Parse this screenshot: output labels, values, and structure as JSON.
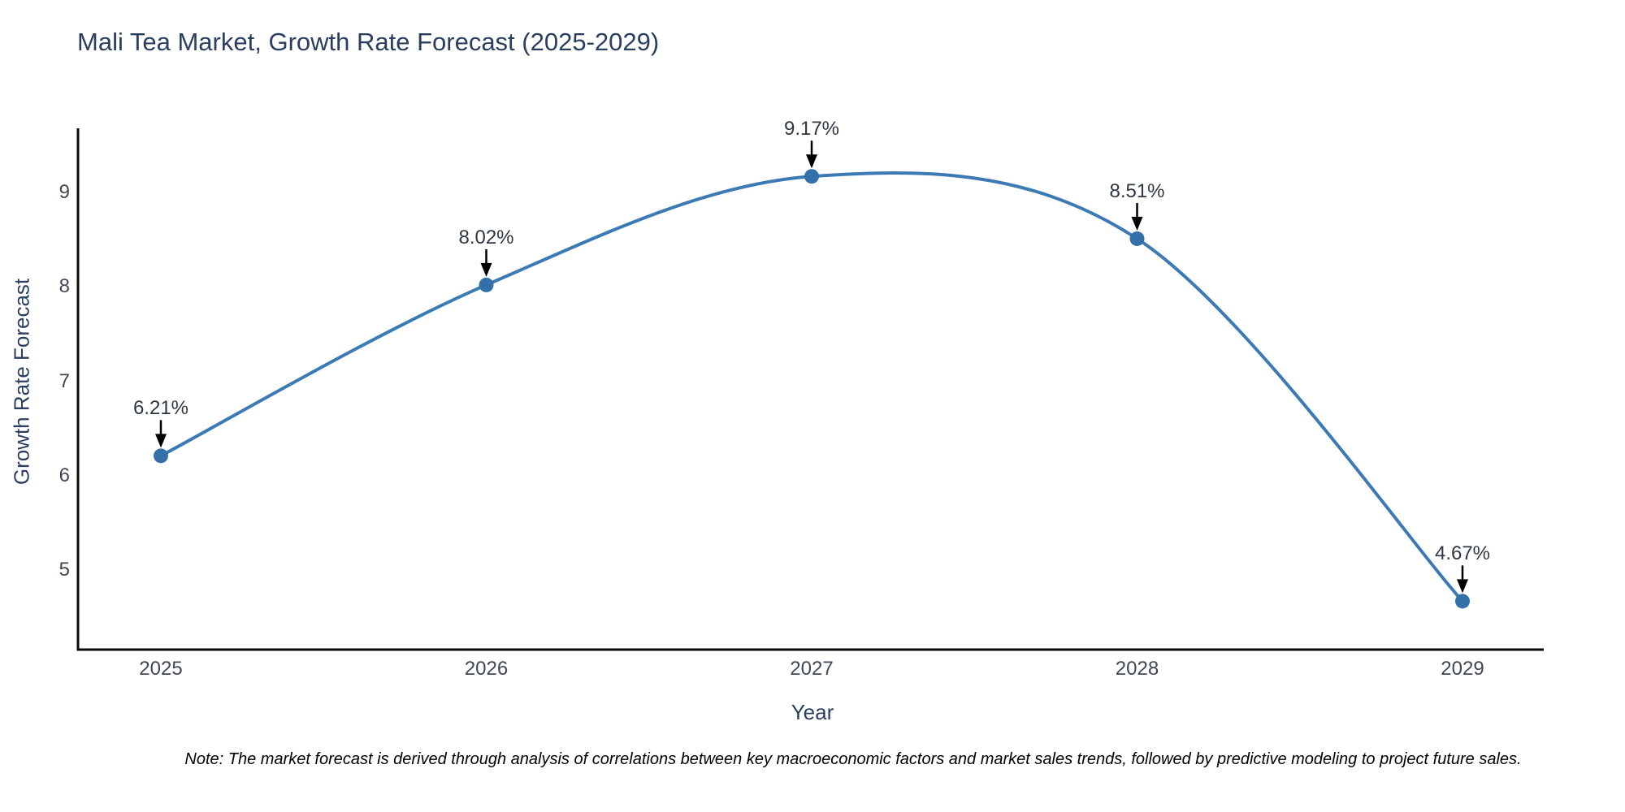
{
  "title": "Mali Tea Market, Growth Rate Forecast (2025-2029)",
  "note": "Note: The market forecast is derived through analysis of correlations between key macroeconomic factors and market sales trends, followed by predictive modeling to project future sales.",
  "chart_data": {
    "type": "line",
    "title": "Mali Tea Market, Growth Rate Forecast (2025-2029)",
    "x": [
      2025,
      2026,
      2027,
      2028,
      2029
    ],
    "series": [
      {
        "name": "Growth Rate Forecast",
        "values": [
          6.21,
          8.02,
          9.17,
          8.51,
          4.67
        ]
      }
    ],
    "point_labels": [
      "6.21%",
      "8.02%",
      "9.17%",
      "8.51%",
      "4.67%"
    ],
    "xlabel": "Year",
    "ylabel": "Growth Rate Forecast",
    "xticks": [
      "2025",
      "2026",
      "2027",
      "2028",
      "2029"
    ],
    "yticks": [
      5,
      6,
      7,
      8,
      9
    ],
    "ylim": [
      4.15,
      9.7
    ],
    "line_shape": "spline",
    "grid": false,
    "legend": "none",
    "colors": {
      "line": "#3c7ab4",
      "marker": "#336fa8",
      "axis": "#0b0b0b",
      "arrow": "#000000",
      "title_text": "#2a3f5f",
      "tick_text": "#404854",
      "annotation_text": "#2f3842"
    }
  }
}
